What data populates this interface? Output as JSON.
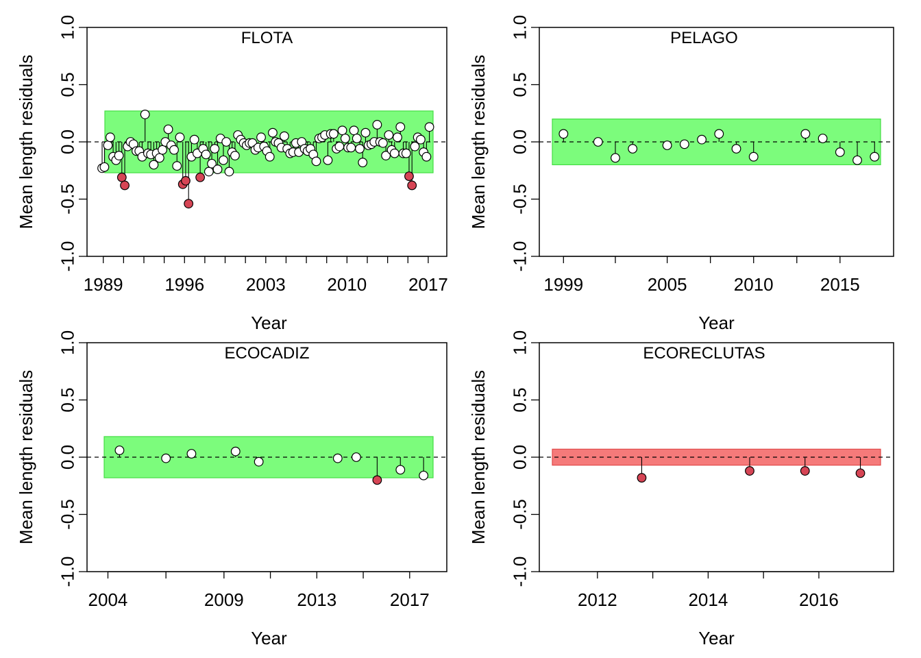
{
  "colors": {
    "band_green": "#7CFC7C",
    "band_green_stroke": "#44DD44",
    "band_red": "#F57A7A",
    "band_red_stroke": "#E04848",
    "point_normal": "#FFFFFF",
    "point_outlier": "#D64555"
  },
  "chart_data": [
    {
      "type": "scatter",
      "title": "FLOTA",
      "xlabel": "Year",
      "ylabel": "Mean length residuals",
      "xlim": [
        1987.6,
        2018.6
      ],
      "ylim": [
        -1.0,
        1.0
      ],
      "x_ticks": [
        1989,
        1996,
        2003,
        2010,
        2017
      ],
      "x_minor_ticks": [
        1990.75,
        1992.5,
        1994.25,
        1997.75,
        1999.5,
        2001.25,
        2004.75,
        2006.5,
        2008.25,
        2011.75,
        2013.5,
        2015.25
      ],
      "y_ticks": [
        "-1.0",
        "-0.5",
        "0.0",
        "0.5",
        "1.0"
      ],
      "band": [
        -0.27,
        0.27
      ],
      "band_color": "green",
      "points": [
        [
          1988.9,
          -0.23
        ],
        [
          1989.1,
          -0.22
        ],
        [
          1989.4,
          -0.03
        ],
        [
          1989.6,
          0.04
        ],
        [
          1989.85,
          -0.13
        ],
        [
          1990.1,
          -0.16
        ],
        [
          1990.35,
          -0.12
        ],
        [
          1990.6,
          -0.31
        ],
        [
          1990.85,
          -0.38
        ],
        [
          1991.1,
          -0.04
        ],
        [
          1991.35,
          0.0
        ],
        [
          1991.6,
          -0.02
        ],
        [
          1991.85,
          -0.08
        ],
        [
          1992.1,
          -0.08
        ],
        [
          1992.35,
          -0.13
        ],
        [
          1992.6,
          0.24
        ],
        [
          1992.85,
          -0.1
        ],
        [
          1993.1,
          -0.11
        ],
        [
          1993.35,
          -0.2
        ],
        [
          1993.6,
          -0.1
        ],
        [
          1993.85,
          -0.14
        ],
        [
          1994.1,
          -0.07
        ],
        [
          1994.35,
          0.0
        ],
        [
          1994.6,
          0.11
        ],
        [
          1994.85,
          -0.03
        ],
        [
          1995.1,
          -0.07
        ],
        [
          1995.35,
          -0.21
        ],
        [
          1995.6,
          0.04
        ],
        [
          1995.85,
          -0.37
        ],
        [
          1996.1,
          -0.34
        ],
        [
          1996.35,
          -0.54
        ],
        [
          1996.6,
          -0.13
        ],
        [
          1996.85,
          0.02
        ],
        [
          1997.1,
          -0.1
        ],
        [
          1997.35,
          -0.31
        ],
        [
          1997.6,
          -0.06
        ],
        [
          1997.85,
          -0.11
        ],
        [
          1998.1,
          -0.26
        ],
        [
          1998.35,
          -0.19
        ],
        [
          1998.6,
          -0.06
        ],
        [
          1998.85,
          -0.24
        ],
        [
          1999.1,
          0.03
        ],
        [
          1999.35,
          -0.16
        ],
        [
          1999.6,
          0.0
        ],
        [
          1999.85,
          -0.26
        ],
        [
          2000.1,
          -0.09
        ],
        [
          2000.35,
          -0.12
        ],
        [
          2000.6,
          0.06
        ],
        [
          2000.85,
          0.02
        ],
        [
          2001.1,
          -0.01
        ],
        [
          2001.35,
          -0.03
        ],
        [
          2001.6,
          -0.01
        ],
        [
          2001.85,
          -0.01
        ],
        [
          2002.1,
          -0.07
        ],
        [
          2002.35,
          -0.05
        ],
        [
          2002.6,
          0.04
        ],
        [
          2002.85,
          -0.04
        ],
        [
          2003.1,
          -0.08
        ],
        [
          2003.35,
          -0.13
        ],
        [
          2003.6,
          0.08
        ],
        [
          2003.85,
          0.0
        ],
        [
          2004.1,
          -0.01
        ],
        [
          2004.35,
          -0.05
        ],
        [
          2004.6,
          0.05
        ],
        [
          2004.85,
          -0.06
        ],
        [
          2005.1,
          -0.1
        ],
        [
          2005.35,
          -0.09
        ],
        [
          2005.6,
          -0.01
        ],
        [
          2005.85,
          -0.09
        ],
        [
          2006.1,
          0.0
        ],
        [
          2006.35,
          -0.06
        ],
        [
          2006.6,
          -0.08
        ],
        [
          2006.85,
          -0.06
        ],
        [
          2007.1,
          -0.11
        ],
        [
          2007.35,
          -0.17
        ],
        [
          2007.6,
          0.03
        ],
        [
          2007.85,
          0.04
        ],
        [
          2008.1,
          0.06
        ],
        [
          2008.35,
          -0.16
        ],
        [
          2008.6,
          0.07
        ],
        [
          2008.85,
          0.07
        ],
        [
          2009.1,
          -0.06
        ],
        [
          2009.35,
          -0.04
        ],
        [
          2009.6,
          0.1
        ],
        [
          2009.85,
          0.03
        ],
        [
          2010.1,
          -0.05
        ],
        [
          2010.35,
          -0.05
        ],
        [
          2010.6,
          0.1
        ],
        [
          2010.85,
          0.03
        ],
        [
          2011.1,
          -0.06
        ],
        [
          2011.35,
          -0.18
        ],
        [
          2011.6,
          0.08
        ],
        [
          2011.85,
          -0.03
        ],
        [
          2012.1,
          -0.02
        ],
        [
          2012.35,
          0.0
        ],
        [
          2012.6,
          0.15
        ],
        [
          2012.85,
          0.0
        ],
        [
          2013.1,
          -0.01
        ],
        [
          2013.35,
          -0.12
        ],
        [
          2013.6,
          0.06
        ],
        [
          2013.85,
          -0.07
        ],
        [
          2014.1,
          -0.1
        ],
        [
          2014.35,
          0.04
        ],
        [
          2014.6,
          0.13
        ],
        [
          2014.85,
          -0.1
        ],
        [
          2015.1,
          -0.1
        ],
        [
          2015.35,
          -0.3
        ],
        [
          2015.6,
          -0.38
        ],
        [
          2015.85,
          -0.04
        ],
        [
          2016.1,
          0.04
        ],
        [
          2016.35,
          0.02
        ],
        [
          2016.6,
          -0.09
        ],
        [
          2016.85,
          -0.13
        ],
        [
          2017.1,
          0.13
        ]
      ],
      "outlier_indices": [
        7,
        8,
        28,
        29,
        30,
        34,
        106,
        107
      ]
    },
    {
      "type": "scatter",
      "title": "PELAGO",
      "xlabel": "Year",
      "ylabel": "Mean length residuals",
      "xlim": [
        1997.6,
        2018.1
      ],
      "ylim": [
        -1.0,
        1.0
      ],
      "x_ticks": [
        1999,
        2005,
        2010,
        2015
      ],
      "x_minor_ticks": [
        2002,
        2007.5,
        2012.5
      ],
      "y_ticks": [
        "-1.0",
        "-0.5",
        "0.0",
        "0.5",
        "1.0"
      ],
      "band": [
        -0.2,
        0.2
      ],
      "band_color": "green",
      "points": [
        [
          1999,
          0.07
        ],
        [
          2001,
          0.0
        ],
        [
          2002,
          -0.14
        ],
        [
          2003,
          -0.06
        ],
        [
          2005,
          -0.03
        ],
        [
          2006,
          -0.02
        ],
        [
          2007,
          0.02
        ],
        [
          2008,
          0.07
        ],
        [
          2009,
          -0.06
        ],
        [
          2010,
          -0.13
        ],
        [
          2013,
          0.07
        ],
        [
          2014,
          0.03
        ],
        [
          2015,
          -0.09
        ],
        [
          2016,
          -0.16
        ],
        [
          2017,
          -0.13
        ]
      ],
      "outlier_indices": []
    },
    {
      "type": "scatter",
      "title": "ECOCADIZ",
      "xlabel": "Year",
      "ylabel": "Mean length residuals",
      "xlim": [
        2003.1,
        2018.6
      ],
      "ylim": [
        -1.0,
        1.0
      ],
      "x_ticks": [
        2004,
        2009,
        2013,
        2017
      ],
      "x_minor_ticks": [
        2006.5,
        2011,
        2015
      ],
      "y_ticks": [
        "-1.0",
        "-0.5",
        "0.0",
        "0.5",
        "1.0"
      ],
      "band": [
        -0.18,
        0.18
      ],
      "band_color": "green",
      "points": [
        [
          2004.5,
          0.06
        ],
        [
          2006.5,
          -0.01
        ],
        [
          2007.6,
          0.03
        ],
        [
          2009.5,
          0.05
        ],
        [
          2010.5,
          -0.04
        ],
        [
          2013.9,
          -0.01
        ],
        [
          2014.7,
          0.0
        ],
        [
          2015.6,
          -0.2
        ],
        [
          2016.6,
          -0.11
        ],
        [
          2017.6,
          -0.16
        ]
      ],
      "outlier_indices": [
        7
      ]
    },
    {
      "type": "scatter",
      "title": "ECORECLUTAS",
      "xlabel": "Year",
      "ylabel": "Mean length residuals",
      "xlim": [
        2010.95,
        2017.35
      ],
      "ylim": [
        -1.0,
        1.0
      ],
      "x_ticks": [
        2012,
        2014,
        2016
      ],
      "x_minor_ticks": [
        2013,
        2015
      ],
      "y_ticks": [
        "-1.0",
        "-0.5",
        "0.0",
        "0.5",
        "1.0"
      ],
      "band": [
        -0.07,
        0.07
      ],
      "band_color": "red",
      "points": [
        [
          2012.8,
          -0.18
        ],
        [
          2014.75,
          -0.12
        ],
        [
          2015.75,
          -0.12
        ],
        [
          2016.75,
          -0.14
        ]
      ],
      "outlier_indices": [
        0,
        1,
        2,
        3
      ]
    }
  ]
}
